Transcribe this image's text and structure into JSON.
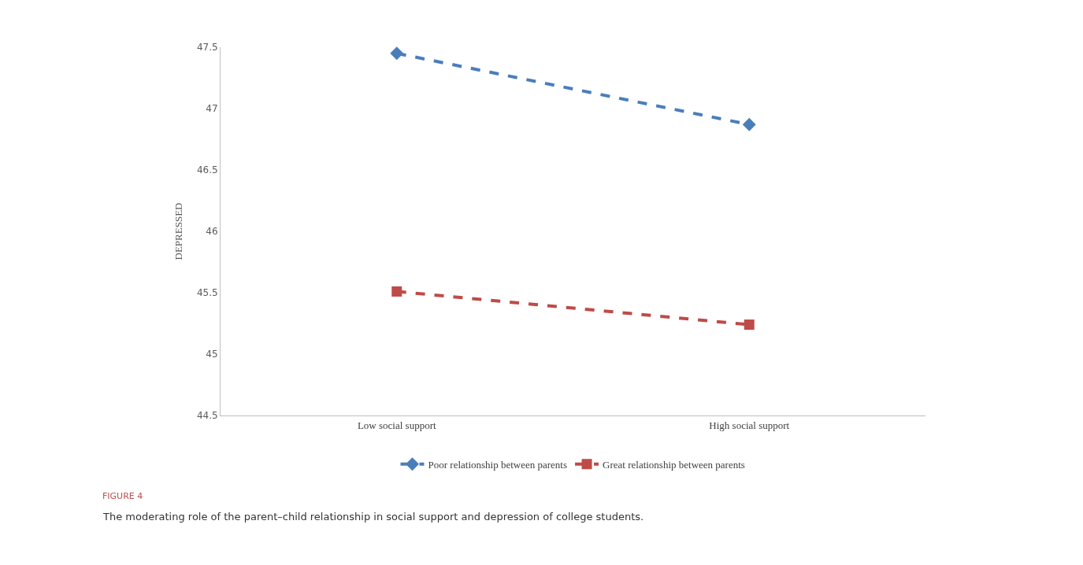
{
  "chart_data": {
    "type": "line",
    "ylabel": "DEPRESSED",
    "categories": [
      "Low social support",
      "High social support"
    ],
    "series": [
      {
        "name": "Poor relationship between parents",
        "color": "#4a7ebb",
        "values": [
          47.45,
          46.87
        ],
        "marker": "diamond",
        "line_style": "dashed"
      },
      {
        "name": "Great relationship between parents",
        "color": "#be4b48",
        "values": [
          45.51,
          45.24
        ],
        "marker": "square",
        "line_style": "dashed"
      }
    ],
    "ylim": [
      44.5,
      47.5
    ],
    "yticks": [
      44.5,
      45,
      45.5,
      46,
      46.5,
      47,
      47.5
    ],
    "grid": false,
    "legend": "bottom",
    "annotations": [
      "FIGURE 4",
      "The moderating role of the parent–child relationship in social support and depression of college students."
    ]
  }
}
